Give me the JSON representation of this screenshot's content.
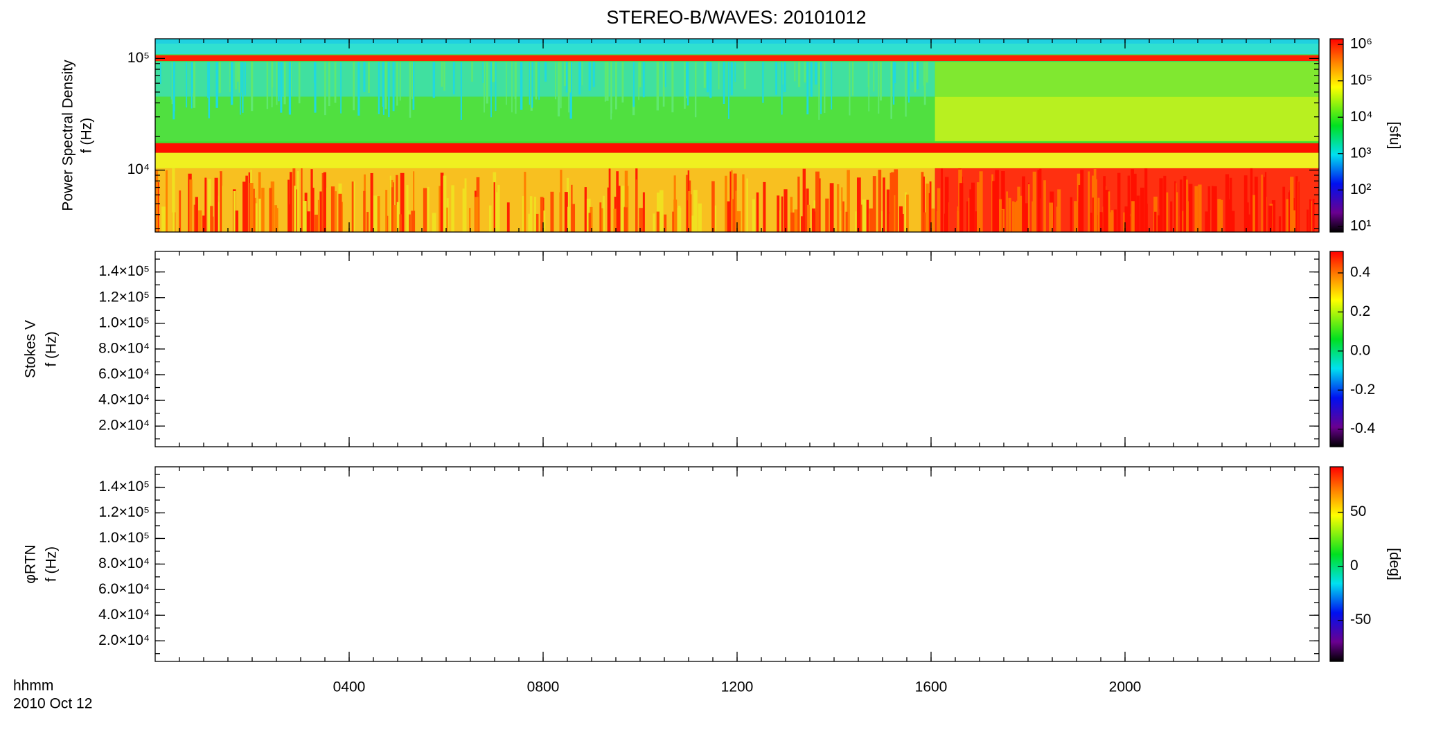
{
  "title": "STEREO-B/WAVES: 20101012",
  "x_axis": {
    "labels": [
      "hhmm",
      "2010 Oct 12"
    ],
    "xlim": [
      0,
      24
    ],
    "xticks": [
      {
        "value": 4,
        "label": "0400"
      },
      {
        "value": 8,
        "label": "0800"
      },
      {
        "value": 12,
        "label": "1200"
      },
      {
        "value": 16,
        "label": "1600"
      },
      {
        "value": 20,
        "label": "2000"
      }
    ]
  },
  "chart_data": [
    {
      "type": "heatmap",
      "ylabel": [
        "Power Spectral Density",
        "f (Hz)"
      ],
      "ylog": true,
      "ylim": [
        2790,
        150000
      ],
      "yticks": [
        {
          "value": 100000,
          "label": "10⁵"
        },
        {
          "value": 10000,
          "label": "10⁴"
        }
      ],
      "clog": true,
      "clim": [
        7,
        1430000
      ],
      "cticks": [
        {
          "value": 1000000,
          "label": "10⁶"
        },
        {
          "value": 100000,
          "label": "10⁵"
        },
        {
          "value": 10000,
          "label": "10⁴"
        },
        {
          "value": 1000,
          "label": "10³"
        },
        {
          "value": 100,
          "label": "10²"
        },
        {
          "value": 10,
          "label": "10¹"
        }
      ],
      "clabel": "[sfu]"
    },
    {
      "type": "heatmap",
      "ylabel": [
        "Stokes V",
        "f (Hz)"
      ],
      "ylog": false,
      "ylim": [
        3900,
        156000
      ],
      "yticks": [
        {
          "value": 140000,
          "label": "1.4×10⁵"
        },
        {
          "value": 120000,
          "label": "1.2×10⁵"
        },
        {
          "value": 100000,
          "label": "1.0×10⁵"
        },
        {
          "value": 80000,
          "label": "8.0×10⁴"
        },
        {
          "value": 60000,
          "label": "6.0×10⁴"
        },
        {
          "value": 40000,
          "label": "4.0×10⁴"
        },
        {
          "value": 20000,
          "label": "2.0×10⁴"
        }
      ],
      "clog": false,
      "clim": [
        -0.49,
        0.51
      ],
      "cticks": [
        0.4,
        0.2,
        {
          "value": 0,
          "label": "0.0"
        },
        -0.2,
        -0.4
      ]
    },
    {
      "type": "heatmap",
      "ylabel": [
        "φRTN",
        "f (Hz)"
      ],
      "ylog": false,
      "ylim": [
        3900,
        156000
      ],
      "yticks": [
        {
          "value": 140000,
          "label": "1.4×10⁵"
        },
        {
          "value": 120000,
          "label": "1.2×10⁵"
        },
        {
          "value": 100000,
          "label": "1.0×10⁵"
        },
        {
          "value": 80000,
          "label": "8.0×10⁴"
        },
        {
          "value": 60000,
          "label": "6.0×10⁴"
        },
        {
          "value": 40000,
          "label": "4.0×10⁴"
        },
        {
          "value": 20000,
          "label": "2.0×10⁴"
        }
      ],
      "clog": false,
      "clim": [
        -88,
        92
      ],
      "cticks": [
        50,
        0,
        -50
      ],
      "clabel": "[deg]"
    }
  ]
}
